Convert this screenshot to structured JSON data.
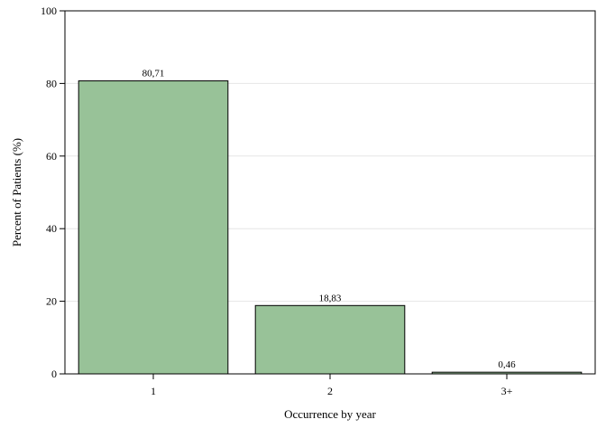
{
  "chart_data": {
    "type": "bar",
    "categories": [
      "1",
      "2",
      "3+"
    ],
    "values": [
      80.71,
      18.83,
      0.46
    ],
    "data_labels": [
      "80,71",
      "18,83",
      "0,46"
    ],
    "title": "",
    "xlabel": "Occurrence by year",
    "ylabel": "Percent of Patients (%)",
    "ylim": [
      0,
      100
    ],
    "yticks": [
      0,
      20,
      40,
      60,
      80,
      100
    ],
    "grid": true,
    "legend": "none",
    "colors": {
      "bar_fill": "#98c298",
      "bar_stroke": "#000000",
      "grid": "#e6e6e6",
      "axis": "#000000"
    }
  }
}
